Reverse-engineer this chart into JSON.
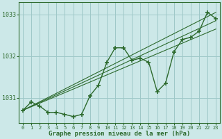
{
  "x": [
    0,
    1,
    2,
    3,
    4,
    5,
    6,
    7,
    8,
    9,
    10,
    11,
    12,
    13,
    14,
    15,
    16,
    17,
    18,
    19,
    20,
    21,
    22,
    23
  ],
  "y_main": [
    1030.7,
    1030.9,
    1030.8,
    1030.65,
    1030.65,
    1030.6,
    1030.55,
    1030.6,
    1031.05,
    1031.3,
    1031.85,
    1032.2,
    1032.2,
    1031.9,
    1031.95,
    1031.85,
    1031.15,
    1031.35,
    1032.1,
    1032.4,
    1032.45,
    1032.6,
    1033.05,
    1032.9
  ],
  "line_color": "#2d6a2d",
  "bg_color": "#cce8e8",
  "grid_color": "#9ec8c8",
  "xlabel": "Graphe pression niveau de la mer (hPa)",
  "ylim": [
    1030.4,
    1033.3
  ],
  "xlim": [
    -0.5,
    23.5
  ],
  "yticks": [
    1031,
    1032,
    1033
  ],
  "trend_lines": [
    {
      "x": [
        0,
        23
      ],
      "y": [
        1030.7,
        1032.85
      ]
    },
    {
      "x": [
        0,
        23
      ],
      "y": [
        1030.7,
        1033.05
      ]
    },
    {
      "x": [
        0,
        23
      ],
      "y": [
        1030.7,
        1032.65
      ]
    }
  ]
}
